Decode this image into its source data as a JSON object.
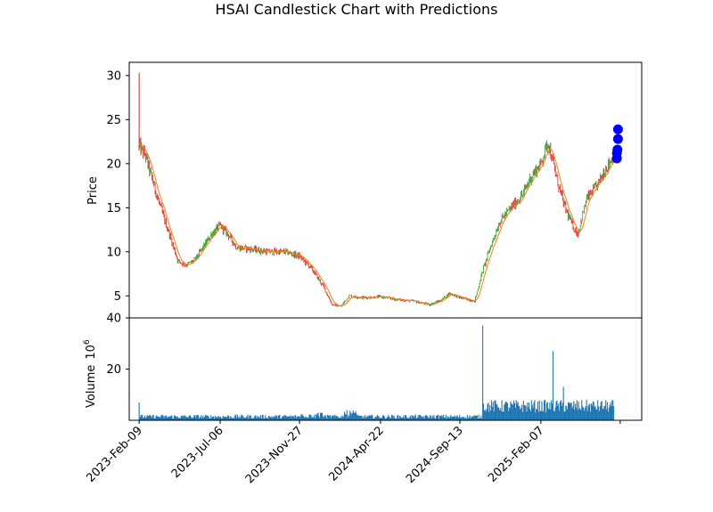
{
  "chart_data": {
    "type": "candlestick",
    "title": "HSAI Candlestick Chart with Predictions",
    "price_panel": {
      "ylabel": "Price",
      "ylim": [
        2.5,
        31.5
      ],
      "yticks": [
        5,
        10,
        15,
        20,
        25,
        30
      ],
      "series": [
        {
          "kind": "candles",
          "ohlc_close_approx": [
            [
              "2023-02-09",
              22.0
            ],
            [
              "2023-02-20",
              21.0
            ],
            [
              "2023-03-01",
              19.0
            ],
            [
              "2023-03-15",
              16.0
            ],
            [
              "2023-03-25",
              14.0
            ],
            [
              "2023-04-05",
              12.0
            ],
            [
              "2023-04-20",
              9.0
            ],
            [
              "2023-05-05",
              8.5
            ],
            [
              "2023-05-20",
              9.0
            ],
            [
              "2023-06-05",
              10.5
            ],
            [
              "2023-06-20",
              12.0
            ],
            [
              "2023-07-06",
              13.0
            ],
            [
              "2023-07-20",
              12.0
            ],
            [
              "2023-08-05",
              10.5
            ],
            [
              "2023-09-01",
              10.3
            ],
            [
              "2023-10-01",
              10.0
            ],
            [
              "2023-11-01",
              10.0
            ],
            [
              "2023-11-27",
              9.5
            ],
            [
              "2023-12-20",
              8.0
            ],
            [
              "2024-01-10",
              6.0
            ],
            [
              "2024-01-25",
              4.0
            ],
            [
              "2024-02-10",
              3.8
            ],
            [
              "2024-02-25",
              5.0
            ],
            [
              "2024-03-20",
              4.8
            ],
            [
              "2024-04-22",
              4.9
            ],
            [
              "2024-05-20",
              4.6
            ],
            [
              "2024-06-20",
              4.4
            ],
            [
              "2024-07-20",
              4.0
            ],
            [
              "2024-08-10",
              4.5
            ],
            [
              "2024-08-25",
              5.3
            ],
            [
              "2024-09-13",
              4.8
            ],
            [
              "2024-10-10",
              4.4
            ],
            [
              "2024-10-25",
              8.0
            ],
            [
              "2024-11-10",
              11.0
            ],
            [
              "2024-11-25",
              13.5
            ],
            [
              "2024-12-15",
              15.0
            ],
            [
              "2025-01-05",
              16.5
            ],
            [
              "2025-01-20",
              18.5
            ],
            [
              "2025-02-07",
              20.0
            ],
            [
              "2025-02-20",
              22.5
            ],
            [
              "2025-03-05",
              19.0
            ],
            [
              "2025-03-20",
              15.5
            ],
            [
              "2025-04-05",
              13.0
            ],
            [
              "2025-04-15",
              12.0
            ],
            [
              "2025-05-01",
              16.0
            ],
            [
              "2025-05-20",
              17.5
            ],
            [
              "2025-06-05",
              19.5
            ],
            [
              "2025-06-20",
              21.0
            ]
          ],
          "peak_high": 30.3,
          "up_color": "#2ca02c",
          "down_color": "#d62728"
        },
        {
          "kind": "moving-average",
          "color": "#ff7f0e"
        },
        {
          "kind": "predictions",
          "marker": "circle",
          "color": "#0000ff",
          "points": [
            [
              "2025-06-25",
              20.6
            ],
            [
              "2025-06-25",
              21.2
            ],
            [
              "2025-06-26",
              21.6
            ],
            [
              "2025-06-27",
              22.8
            ],
            [
              "2025-06-27",
              23.9
            ]
          ]
        }
      ]
    },
    "volume_panel": {
      "ylabel_text": "Volume",
      "ylabel_exponent": "10",
      "ylabel_exponent_power": "6",
      "ylim": [
        0,
        40
      ],
      "yticks": [
        20,
        40
      ],
      "color": "#1f77b4",
      "notable_bars": [
        [
          "2023-02-09",
          7
        ],
        [
          "2024-10-25",
          37
        ],
        [
          "2025-03-01",
          27
        ],
        [
          "2025-03-20",
          13
        ]
      ]
    },
    "x_axis": {
      "xlim": [
        "2023-01-22",
        "2025-08-09"
      ],
      "ticks": [
        {
          "date": "2023-02-09",
          "label": "2023-Feb-09"
        },
        {
          "date": "2023-07-06",
          "label": "2023-Jul-06"
        },
        {
          "date": "2023-11-27",
          "label": "2023-Nov-27"
        },
        {
          "date": "2024-04-22",
          "label": "2024-Apr-22"
        },
        {
          "date": "2024-09-13",
          "label": "2024-Sep-13"
        },
        {
          "date": "2025-02-07",
          "label": "2025-Feb-07"
        },
        {
          "date": "2025-07-01",
          "label": ""
        }
      ]
    },
    "grid": false,
    "legend": "none"
  }
}
